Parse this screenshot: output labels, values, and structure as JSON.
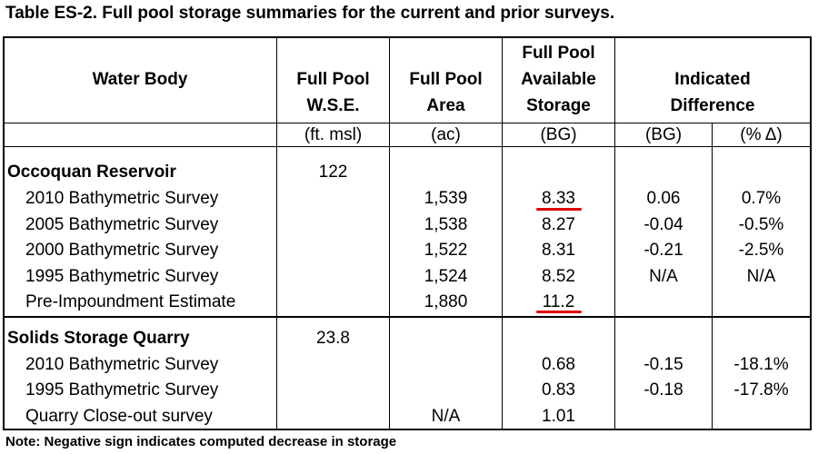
{
  "title": "Table ES-2.  Full pool storage summaries for the current and prior surveys.",
  "headers": {
    "water_body": "Water Body",
    "wse": [
      "Full Pool",
      "W.S.E."
    ],
    "area": [
      "Full Pool",
      "Area"
    ],
    "storage": [
      "Full Pool",
      "Available",
      "Storage"
    ],
    "difference": [
      "Indicated",
      "Difference"
    ]
  },
  "units": {
    "wse": "(ft. msl)",
    "area": "(ac)",
    "storage": "(BG)",
    "diff_bg": "(BG)",
    "diff_pct": "(% Δ)"
  },
  "sections": [
    {
      "name": "Occoquan Reservoir",
      "wse": "122",
      "rows": [
        {
          "label": "2010 Bathymetric Survey",
          "area": "1,539",
          "storage": "8.33",
          "diff_bg": "0.06",
          "diff_pct": "0.7%"
        },
        {
          "label": "2005 Bathymetric Survey",
          "area": "1,538",
          "storage": "8.27",
          "diff_bg": "-0.04",
          "diff_pct": "-0.5%"
        },
        {
          "label": "2000 Bathymetric Survey",
          "area": "1,522",
          "storage": "8.31",
          "diff_bg": "-0.21",
          "diff_pct": "-2.5%"
        },
        {
          "label": "1995 Bathymetric Survey",
          "area": "1,524",
          "storage": "8.52",
          "diff_bg": "N/A",
          "diff_pct": "N/A"
        },
        {
          "label": "Pre-Impoundment Estimate",
          "area": "1,880",
          "storage": "11.2",
          "diff_bg": "",
          "diff_pct": ""
        }
      ]
    },
    {
      "name": "Solids Storage Quarry",
      "wse": "23.8",
      "rows": [
        {
          "label": "2010 Bathymetric Survey",
          "area": "",
          "storage": "0.68",
          "diff_bg": "-0.15",
          "diff_pct": "-18.1%"
        },
        {
          "label": "1995 Bathymetric Survey",
          "area": "",
          "storage": "0.83",
          "diff_bg": "-0.18",
          "diff_pct": "-17.8%"
        },
        {
          "label": "Quarry Close-out survey",
          "area": "N/A",
          "storage": "1.01",
          "diff_bg": "",
          "diff_pct": ""
        }
      ]
    }
  ],
  "note": "Note:  Negative sign indicates computed decrease in storage",
  "highlight_color": "#e00000"
}
